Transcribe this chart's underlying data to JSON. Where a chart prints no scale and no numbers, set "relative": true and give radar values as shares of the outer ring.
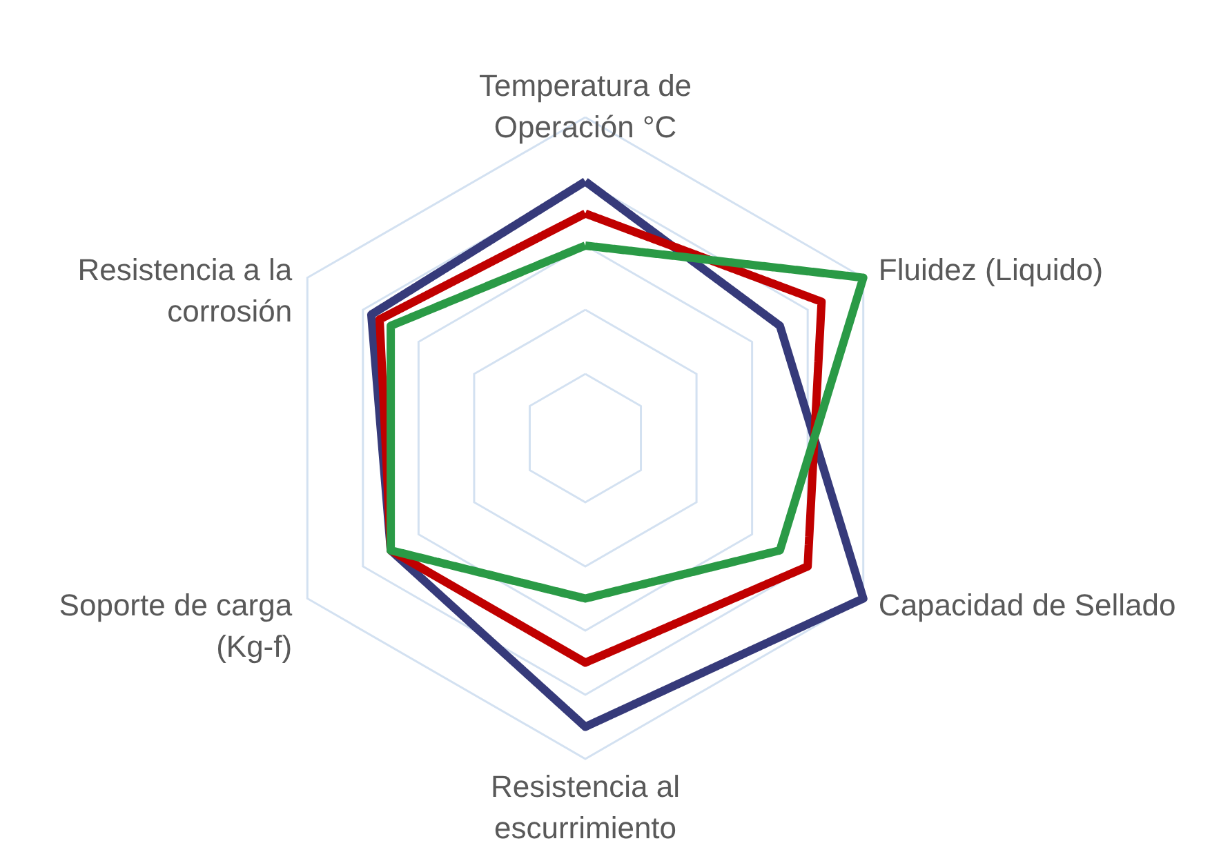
{
  "chart_data": {
    "type": "radar",
    "relative": true,
    "categories": [
      "Temperatura de\nOperación °C",
      "Fluidez (Liquido)",
      "Capacidad de Sellado",
      "Resistencia al\nescurrimiento",
      "Soporte de carga\n(Kg-f)",
      "Resistencia a la\ncorrosión"
    ],
    "series": [
      {
        "color": "#363a7a",
        "values": [
          0.8,
          0.7,
          1.0,
          0.9,
          0.7,
          0.77
        ]
      },
      {
        "color": "#c00000",
        "values": [
          0.7,
          0.85,
          0.8,
          0.7,
          0.7,
          0.74
        ]
      },
      {
        "color": "#2a9a46",
        "values": [
          0.6,
          1.0,
          0.7,
          0.5,
          0.7,
          0.7
        ]
      }
    ],
    "grid": true,
    "line_style": "solid",
    "marker": "none"
  }
}
